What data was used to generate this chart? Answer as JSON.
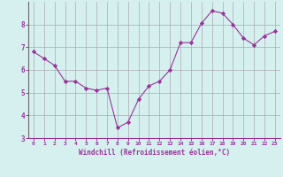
{
  "x": [
    0,
    1,
    2,
    3,
    4,
    5,
    6,
    7,
    8,
    9,
    10,
    11,
    12,
    13,
    14,
    15,
    16,
    17,
    18,
    19,
    20,
    21,
    22,
    23
  ],
  "y": [
    6.8,
    6.5,
    6.2,
    5.5,
    5.5,
    5.2,
    5.1,
    5.2,
    3.45,
    3.7,
    4.7,
    5.3,
    5.5,
    6.0,
    7.2,
    7.2,
    8.05,
    8.6,
    8.5,
    8.0,
    7.4,
    7.1,
    7.5,
    7.7
  ],
  "line_color": "#993399",
  "marker": "D",
  "marker_size": 2.2,
  "bg_color": "#d6f0f0",
  "grid_color": "#aaaaaa",
  "xlabel": "Windchill (Refroidissement éolien,°C)",
  "xlabel_color": "#993399",
  "tick_color": "#993399",
  "ylim": [
    3,
    9
  ],
  "yticks": [
    3,
    4,
    5,
    6,
    7,
    8
  ],
  "xlim": [
    -0.5,
    23.5
  ],
  "xticks": [
    0,
    1,
    2,
    3,
    4,
    5,
    6,
    7,
    8,
    9,
    10,
    11,
    12,
    13,
    14,
    15,
    16,
    17,
    18,
    19,
    20,
    21,
    22,
    23
  ],
  "left_spine_color": "#666666",
  "bottom_spine_color": "#993399",
  "tick_fontsize_x": 4.5,
  "tick_fontsize_y": 5.5,
  "xlabel_fontsize": 5.5,
  "linewidth": 0.8
}
